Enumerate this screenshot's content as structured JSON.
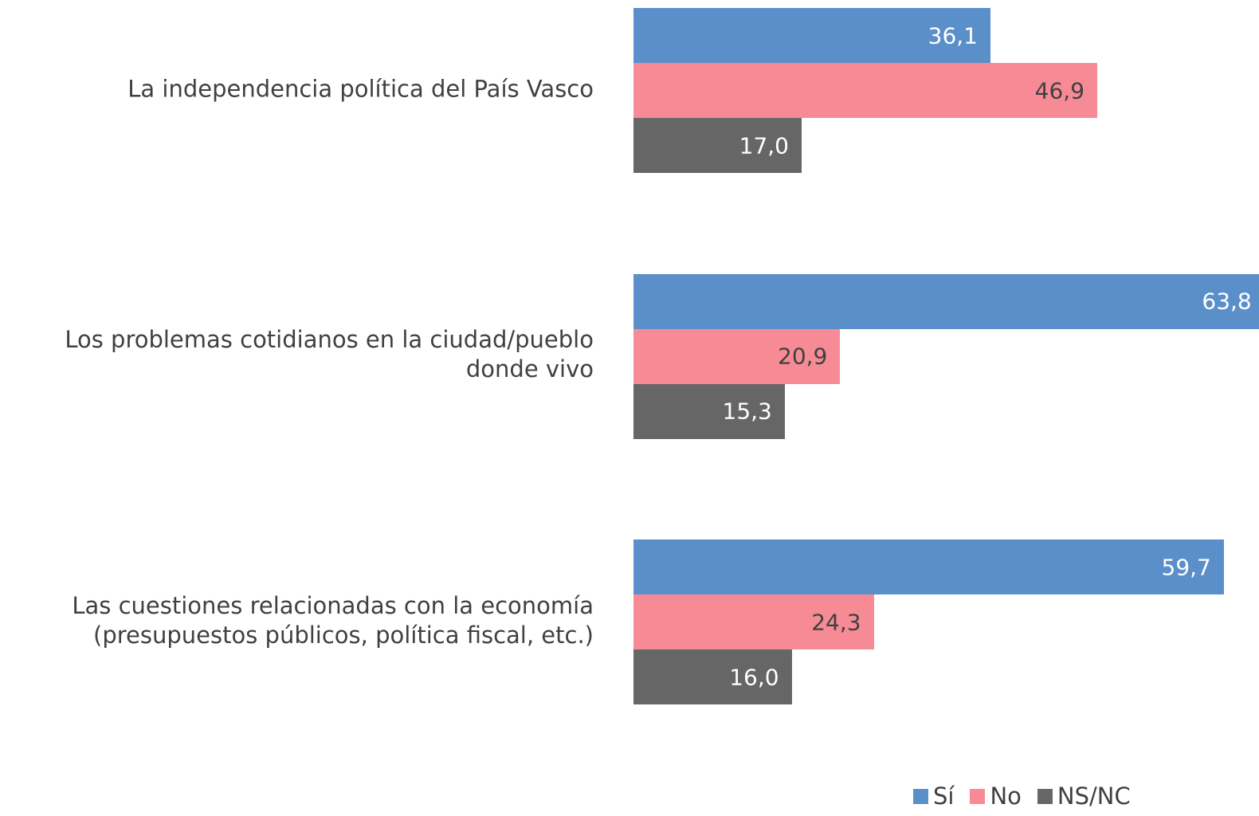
{
  "chart_data": {
    "type": "bar",
    "orientation": "horizontal",
    "categories": [
      "La independencia política del País Vasco",
      "Los problemas cotidianos en la ciudad/pueblo donde vivo",
      "Las cuestiones relacionadas con la economía (presupuestos públicos, política fiscal, etc.)"
    ],
    "series": [
      {
        "name": "Sí",
        "color": "#5b8fca",
        "values": [
          36.1,
          63.8,
          59.7
        ],
        "value_labels": [
          "36,1",
          "63,8",
          "59,7"
        ]
      },
      {
        "name": "No",
        "color": "#f68b96",
        "values": [
          46.9,
          20.9,
          24.3
        ],
        "value_labels": [
          "46,9",
          "20,9",
          "24,3"
        ]
      },
      {
        "name": "NS/NC",
        "color": "#666666",
        "values": [
          17.0,
          15.3,
          16.0
        ],
        "value_labels": [
          "17,0",
          "15,3",
          "16,0"
        ]
      }
    ]
  }
}
